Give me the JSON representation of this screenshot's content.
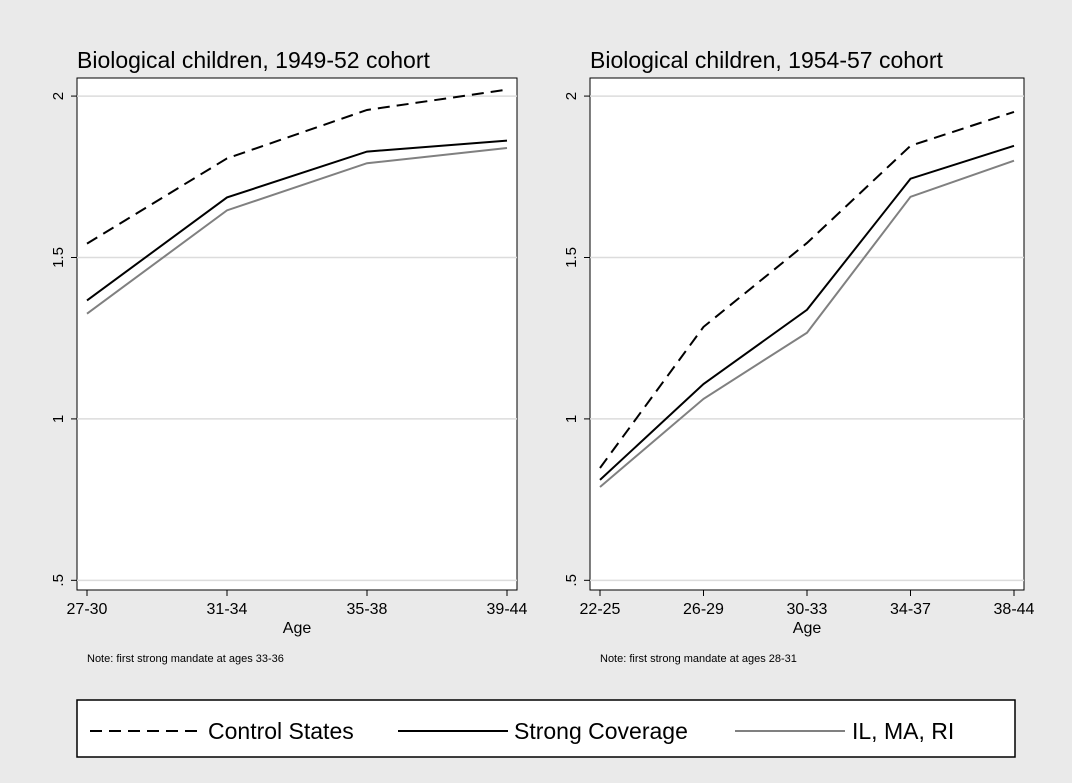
{
  "chart_data": [
    {
      "type": "line",
      "title": "Biological children, 1949-52 cohort",
      "x_label": "Age",
      "note": "Note: first strong mandate at ages 33-36",
      "categories": [
        "27-30",
        "31-34",
        "35-38",
        "39-44"
      ],
      "ylim": [
        0.47,
        2.056
      ],
      "yticks": [
        {
          "value": 0.5,
          "label": ".5"
        },
        1,
        1.5,
        2
      ],
      "grid": true,
      "legend": "bottom",
      "series": [
        {
          "name": "Control States",
          "color": "#000000",
          "line_style": "dashed",
          "values": [
            1.543,
            1.807,
            1.957,
            2.02
          ]
        },
        {
          "name": "Strong Coverage",
          "color": "#000000",
          "line_style": "solid",
          "values": [
            1.367,
            1.686,
            1.828,
            1.862
          ]
        },
        {
          "name": "IL, MA, RI",
          "color": "#808080",
          "line_style": "solid",
          "values": [
            1.326,
            1.646,
            1.792,
            1.839
          ]
        }
      ]
    },
    {
      "type": "line",
      "title": "Biological children, 1954-57 cohort",
      "x_label": "Age",
      "note": "Note: first strong mandate at ages 28-31",
      "categories": [
        "22-25",
        "26-29",
        "30-33",
        "34-37",
        "38-44"
      ],
      "ylim": [
        0.47,
        2.056
      ],
      "yticks": [
        {
          "value": 0.5,
          "label": ".5"
        },
        1,
        1.5,
        2
      ],
      "grid": true,
      "series": [
        {
          "color": "#000000",
          "line_style": "dashed",
          "values": [
            0.848,
            1.285,
            1.545,
            1.846,
            1.951
          ]
        },
        {
          "color": "#000000",
          "line_style": "solid",
          "values": [
            0.811,
            1.108,
            1.338,
            1.744,
            1.846
          ]
        },
        {
          "color": "#808080",
          "line_style": "solid",
          "values": [
            0.789,
            1.062,
            1.267,
            1.688,
            1.8
          ]
        }
      ]
    }
  ]
}
